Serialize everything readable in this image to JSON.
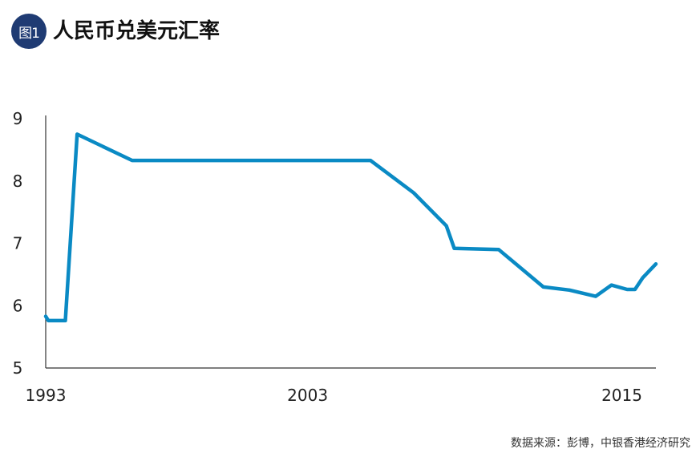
{
  "header": {
    "badge": "图1",
    "title": "人民币兑美元汇率"
  },
  "source": "数据来源：彭博，中银香港经济研究",
  "colors": {
    "line": "#0a8ac4",
    "badge": "#1f3b73",
    "axis": "#333333"
  },
  "chart_data": {
    "type": "line",
    "title": "人民币兑美元汇率",
    "xlabel": "",
    "ylabel": "",
    "xlim": [
      1993,
      2016.3
    ],
    "ylim": [
      5,
      9
    ],
    "x_ticks": [
      1993,
      2003,
      2015
    ],
    "y_ticks": [
      5,
      6,
      7,
      8,
      9
    ],
    "grid": false,
    "series": [
      {
        "x": [
          1993.0,
          1993.1,
          1993.3,
          1993.75,
          1994.2,
          1996.3,
          2005.4,
          2007.05,
          2008.3,
          2008.6,
          2010.3,
          2012.0,
          2013.0,
          2014.0,
          2014.6,
          2015.2,
          2015.5,
          2015.8,
          2016.3
        ],
        "y": [
          5.83,
          5.76,
          5.76,
          5.76,
          8.75,
          8.33,
          8.33,
          7.81,
          7.28,
          6.92,
          6.9,
          6.3,
          6.25,
          6.15,
          6.33,
          6.26,
          6.26,
          6.45,
          6.67
        ]
      }
    ]
  }
}
